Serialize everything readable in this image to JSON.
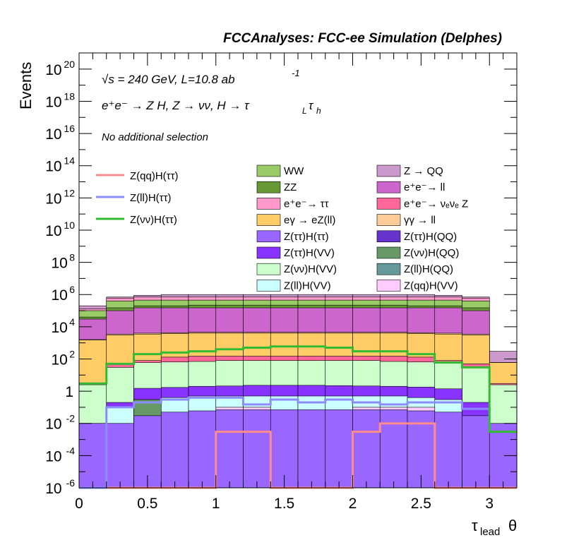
{
  "header": "FCCAnalyses: FCC-ee Simulation (Delphes)",
  "annotations": {
    "sqrt_s": "√s = 240 GeV, L=10.8 ab",
    "lumi_exp": "-1",
    "process": "e⁺e⁻ → Z H, Z → νν, H → τ",
    "process_sub1": "L",
    "process_tau": "τ",
    "process_sub2": "h",
    "selection": "No additional selection"
  },
  "axes": {
    "ylabel": "Events",
    "xlabel_main": "τ",
    "xlabel_sub": "lead",
    "xlabel_suffix": "θ",
    "xtick_labels": [
      "0",
      "0.5",
      "1",
      "1.5",
      "2",
      "2.5",
      "3"
    ],
    "ytick_labels": [
      {
        "base": "10",
        "exp": "20"
      },
      {
        "base": "10",
        "exp": "18"
      },
      {
        "base": "10",
        "exp": "16"
      },
      {
        "base": "10",
        "exp": "14"
      },
      {
        "base": "10",
        "exp": "12"
      },
      {
        "base": "10",
        "exp": "10"
      },
      {
        "base": "10",
        "exp": "8"
      },
      {
        "base": "10",
        "exp": "6"
      },
      {
        "base": "10",
        "exp": "4"
      },
      {
        "base": "10",
        "exp": "2"
      },
      {
        "base": "1",
        "exp": ""
      },
      {
        "base": "10",
        "exp": "-2"
      },
      {
        "base": "10",
        "exp": "-4"
      },
      {
        "base": "10",
        "exp": "-6"
      }
    ]
  },
  "legend": {
    "signals": [
      {
        "label": "Z(qq)H(ττ)",
        "color": "#ff8c8c"
      },
      {
        "label": "Z(ll)H(ττ)",
        "color": "#8c8cff"
      },
      {
        "label": "Z(νν)H(ττ)",
        "color": "#33bb33"
      }
    ],
    "backgrounds_col1": [
      {
        "label": "WW",
        "color": "#99cc66"
      },
      {
        "label": "ZZ",
        "color": "#669933"
      },
      {
        "label": "e⁺e⁻→ ττ",
        "color": "#ff99cc"
      },
      {
        "label": "eγ → eZ(ll)",
        "color": "#ffcc66"
      },
      {
        "label": "Z(ττ)H(ττ)",
        "color": "#9966ff"
      },
      {
        "label": "Z(ττ)H(VV)",
        "color": "#8833ff"
      },
      {
        "label": "Z(νν)H(VV)",
        "color": "#ccffcc"
      },
      {
        "label": "Z(ll)H(VV)",
        "color": "#ccffff"
      }
    ],
    "backgrounds_col2": [
      {
        "label": "Z → QQ",
        "color": "#cc99cc"
      },
      {
        "label": "e⁺e⁻→ ll",
        "color": "#cc66cc"
      },
      {
        "label": "e⁺e⁻→ νₑνₑ Z",
        "color": "#ff6699"
      },
      {
        "label": "γγ → ll",
        "color": "#ffcc99"
      },
      {
        "label": "Z(ττ)H(QQ)",
        "color": "#6633cc"
      },
      {
        "label": "Z(νν)H(QQ)",
        "color": "#669966"
      },
      {
        "label": "Z(ll)H(QQ)",
        "color": "#669999"
      },
      {
        "label": "Z(qq)H(VV)",
        "color": "#ffccff"
      }
    ]
  },
  "chart_data": {
    "type": "histogram",
    "log_y": true,
    "xlim": [
      0,
      3.2
    ],
    "ylim": [
      1e-06,
      1e+21
    ],
    "bin_edges": [
      0,
      0.2,
      0.4,
      0.6,
      0.8,
      1.0,
      1.2,
      1.4,
      1.6,
      1.8,
      2.0,
      2.2,
      2.4,
      2.6,
      2.8,
      3.0,
      3.2
    ],
    "stack_cumulative": [
      {
        "name": "Z(ττ)H(ττ)",
        "color": "#9966ff",
        "values": [
          0.01,
          0.01,
          0.03,
          0.05,
          0.06,
          0.07,
          0.07,
          0.07,
          0.07,
          0.07,
          0.07,
          0.07,
          0.06,
          0.05,
          0.03,
          0.01
        ]
      },
      {
        "name": "Z(νν)H(QQ)",
        "color": "#669966",
        "values": [
          0,
          0.003,
          0.3,
          0.01,
          1e-06,
          1e-06,
          1e-06,
          1e-06,
          1e-06,
          1e-06,
          1e-06,
          1e-06,
          0.003,
          0.01,
          0,
          0
        ]
      },
      {
        "name": "Z(ll)H(QQ)",
        "color": "#669999",
        "values": [
          0,
          0.003,
          0.003,
          0,
          0,
          0,
          0,
          0,
          0,
          0,
          0,
          0,
          0.003,
          0,
          0,
          0
        ]
      },
      {
        "name": "Z(ττ)H(QQ)",
        "color": "#6633cc",
        "values": [
          0,
          0,
          0,
          0,
          3e-05,
          0,
          0,
          0,
          0,
          0,
          0,
          0,
          0,
          0,
          0,
          0
        ]
      },
      {
        "name": "Z(qq)H(VV)",
        "color": "#ffccff",
        "values": [
          0,
          0,
          0,
          0,
          0,
          0.1,
          0.1,
          0,
          0,
          0,
          0.1,
          0.1,
          0.1,
          0,
          0,
          0
        ]
      },
      {
        "name": "Z(ll)H(VV)",
        "color": "#ccffff",
        "values": [
          0.002,
          0.1,
          0.3,
          0.4,
          0.5,
          0.5,
          0.5,
          0.5,
          0.5,
          0.5,
          0.5,
          0.5,
          0.4,
          0.3,
          0.02,
          0
        ]
      },
      {
        "name": "Z(ττ)H(VV)",
        "color": "#8833ff",
        "values": [
          0.01,
          0.2,
          1.5,
          1.7,
          2,
          2.1,
          2.3,
          2.3,
          2.3,
          2.2,
          2.1,
          2.0,
          1.8,
          1.4,
          0.2,
          0.003
        ]
      },
      {
        "name": "Z(νν)H(VV)",
        "color": "#ccffcc",
        "values": [
          2.5,
          30,
          60,
          65,
          70,
          80,
          80,
          80,
          80,
          80,
          80,
          70,
          65,
          60,
          30,
          2.5
        ]
      },
      {
        "name": "e⁺e⁻→ νₑνₑ Z",
        "color": "#ff6699",
        "values": [
          3,
          50,
          80,
          130,
          150,
          150,
          150,
          150,
          150,
          150,
          150,
          150,
          130,
          80,
          50,
          3
        ]
      },
      {
        "name": "eγ → eZ(ll)",
        "color": "#ffcc66",
        "values": [
          1500,
          3000,
          3500,
          3800,
          4000,
          4000,
          4000,
          4000,
          4000,
          4000,
          4000,
          4000,
          3800,
          3500,
          3000,
          60
        ]
      },
      {
        "name": "γγ → ll",
        "color": "#ffcc99",
        "values": [
          1600,
          3500,
          4000,
          4200,
          4500,
          4500,
          4500,
          4500,
          4500,
          4500,
          4500,
          4500,
          4200,
          4000,
          3500,
          60
        ]
      },
      {
        "name": "e⁺e⁻→ ll",
        "color": "#cc66cc",
        "values": [
          30000,
          100000,
          150000,
          150000,
          150000,
          150000,
          150000,
          150000,
          150000,
          150000,
          150000,
          150000,
          150000,
          150000,
          100000,
          60
        ]
      },
      {
        "name": "ZZ",
        "color": "#669933",
        "values": [
          40000,
          150000,
          200000,
          200000,
          220000,
          220000,
          220000,
          220000,
          220000,
          220000,
          220000,
          220000,
          200000,
          200000,
          150000,
          60
        ]
      },
      {
        "name": "WW",
        "color": "#99cc66",
        "values": [
          100000,
          400000,
          450000,
          450000,
          450000,
          450000,
          450000,
          450000,
          450000,
          450000,
          450000,
          450000,
          450000,
          450000,
          400000,
          60
        ]
      },
      {
        "name": "e⁺e⁻→ ττ",
        "color": "#ff99cc",
        "values": [
          130000,
          600000,
          700000,
          700000,
          700000,
          700000,
          700000,
          700000,
          700000,
          700000,
          700000,
          700000,
          700000,
          700000,
          600000,
          60
        ]
      },
      {
        "name": "Z → QQ",
        "color": "#cc99cc",
        "values": [
          200000,
          700000,
          900000,
          1000000,
          1000000,
          1000000,
          1000000,
          1000000,
          1000000,
          1000000,
          1000000,
          1000000,
          1000000,
          900000,
          700000,
          300
        ]
      }
    ],
    "signal_lines": [
      {
        "name": "Z(qq)H(ττ)",
        "color": "#ff8c8c",
        "values": [
          1e-06,
          1e-06,
          1e-06,
          1e-06,
          1e-06,
          0.003,
          0.003,
          1e-06,
          1e-06,
          1e-06,
          0.003,
          0.01,
          0.01,
          1e-06,
          1e-06,
          1e-06
        ]
      },
      {
        "name": "Z(ll)H(ττ)",
        "color": "#8c8cff",
        "values": [
          1e-06,
          0.1,
          0.2,
          0.3,
          0.4,
          0.4,
          0.15,
          0.3,
          0.2,
          0.3,
          0.2,
          0.15,
          0.2,
          0.2,
          0.08,
          0.003
        ]
      },
      {
        "name": "Z(νν)H(ττ)",
        "color": "#33bb33",
        "values": [
          3,
          50,
          200,
          250,
          300,
          400,
          500,
          600,
          600,
          500,
          300,
          300,
          200,
          60,
          30,
          0.003
        ]
      }
    ]
  }
}
